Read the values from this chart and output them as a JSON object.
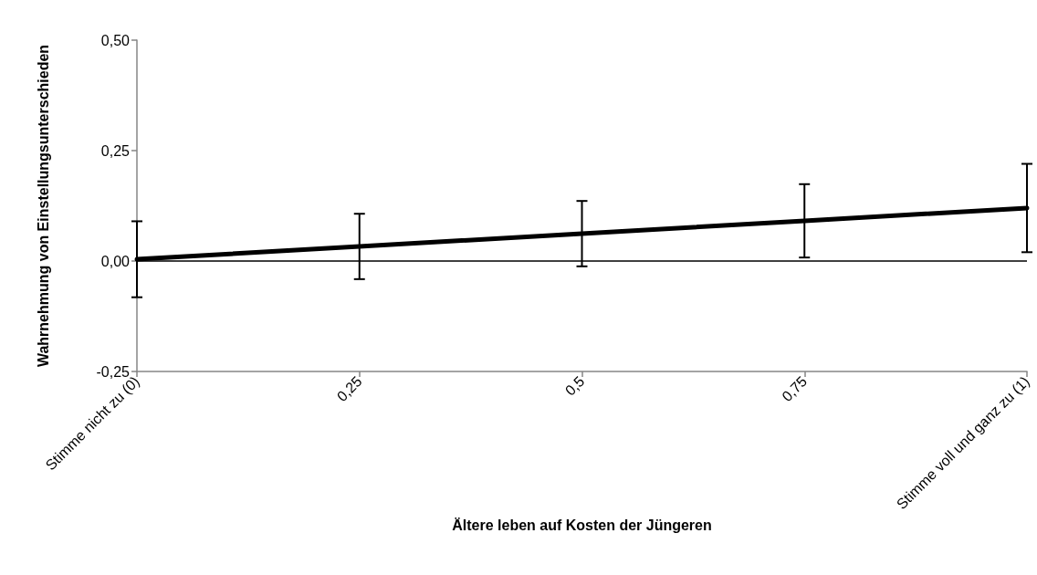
{
  "chart_data": {
    "type": "line",
    "xlabel": "Ältere leben auf Kosten der Jüngeren",
    "ylabel": "Wahrnehmung von Einstellungsunterschieden",
    "x": [
      0,
      0.25,
      0.5,
      0.75,
      1
    ],
    "series": [
      {
        "color": "#000000",
        "values": [
          0.004,
          0.033,
          0.062,
          0.091,
          0.12
        ],
        "errors": [
          0.086,
          0.074,
          0.074,
          0.083,
          0.1
        ]
      }
    ],
    "xlim": [
      0,
      1
    ],
    "xticks": [
      {
        "value": 0,
        "label": "Stimme nicht zu (0)"
      },
      {
        "value": 0.25,
        "label": "0,25"
      },
      {
        "value": 0.5,
        "label": "0,5"
      },
      {
        "value": 0.75,
        "label": "0,75"
      },
      {
        "value": 1,
        "label": "Stimme voll und ganz zu (1)"
      }
    ],
    "ylim": [
      -0.25,
      0.5
    ],
    "yticks": [
      {
        "value": -0.25,
        "label": "-0,25"
      },
      {
        "value": 0,
        "label": "0,00"
      },
      {
        "value": 0.25,
        "label": "0,25"
      },
      {
        "value": 0.5,
        "label": "0,50"
      }
    ],
    "ref_lines": [
      {
        "axis": "y",
        "value": 0,
        "color": "#000000"
      }
    ],
    "grid": false,
    "marker": "none",
    "line_style": "solid"
  }
}
